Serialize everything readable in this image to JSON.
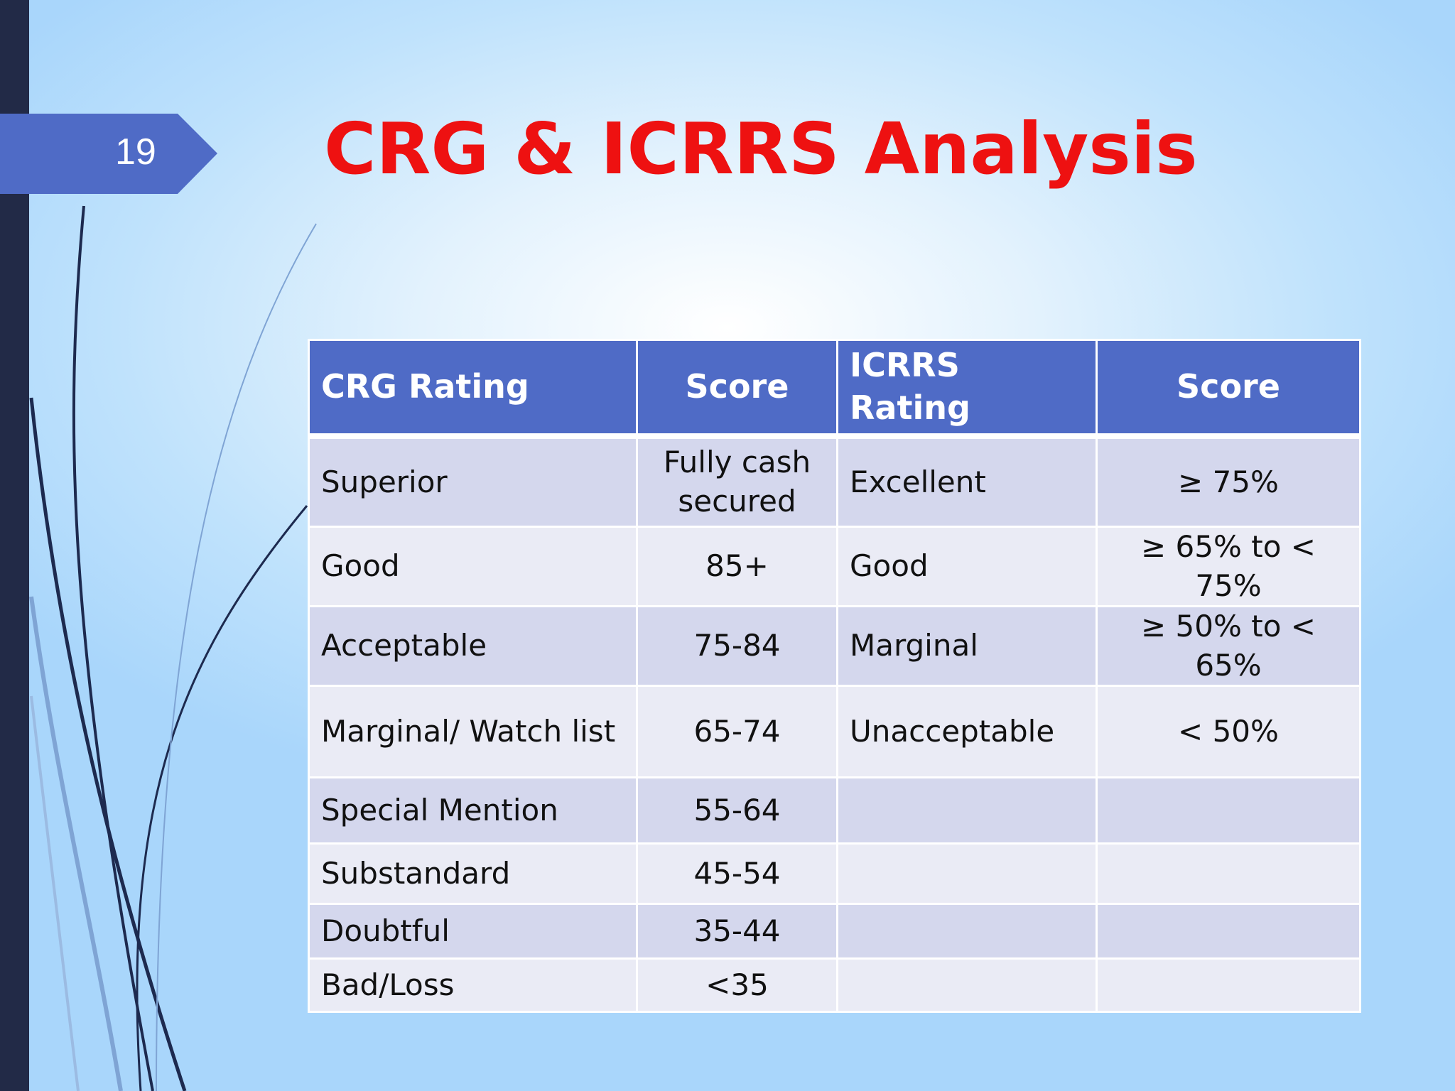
{
  "slide": {
    "number": "19",
    "title": "CRG & ICRRS Analysis"
  },
  "table": {
    "headers": [
      "CRG Rating",
      "Score",
      "ICRRS Rating",
      "Score"
    ],
    "rows": [
      [
        "Superior",
        "Fully cash secured",
        "Excellent",
        "≥ 75%"
      ],
      [
        "Good",
        "85+",
        "Good",
        "≥ 65% to < 75%"
      ],
      [
        "Acceptable",
        "75-84",
        "Marginal",
        "≥ 50% to < 65%"
      ],
      [
        "Marginal/ Watch list",
        "65-74",
        "Unacceptable",
        "< 50%"
      ],
      [
        "Special Mention",
        "55-64",
        "",
        ""
      ],
      [
        "Substandard",
        "45-54",
        "",
        ""
      ],
      [
        "Doubtful",
        "35-44",
        "",
        ""
      ],
      [
        "Bad/Loss",
        "<35",
        "",
        ""
      ]
    ]
  },
  "colors": {
    "title": "#ee1111",
    "header_bg": "#4f6bc6",
    "row_odd": "#d4d7ed",
    "row_even": "#eaebf5",
    "sidebar": "#222a47"
  }
}
